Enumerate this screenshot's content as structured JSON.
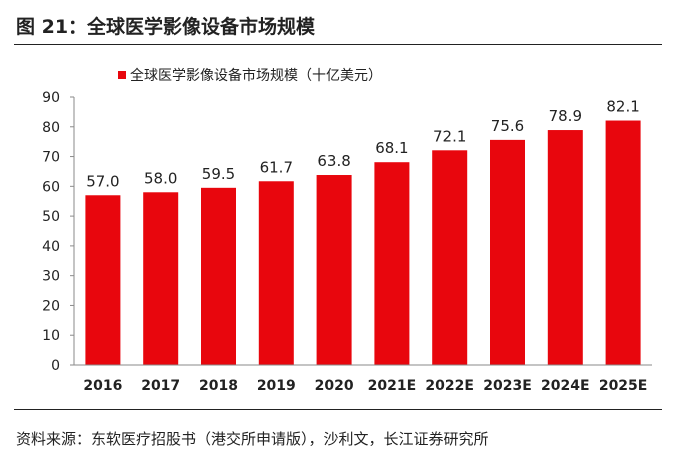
{
  "figure": {
    "title": "图 21：全球医学影像设备市场规模",
    "source": "资料来源：东软医疗招股书（港交所申请版），沙利文，长江证券研究所"
  },
  "colors": {
    "bar": "#e8060d",
    "axis": "#8a8a8a",
    "text": "#222222"
  },
  "chart_data": {
    "type": "bar",
    "categories": [
      "2016",
      "2017",
      "2018",
      "2019",
      "2020",
      "2021E",
      "2022E",
      "2023E",
      "2024E",
      "2025E"
    ],
    "series": [
      {
        "name": "全球医学影像设备市场规模（十亿美元）",
        "values": [
          57.0,
          58.0,
          59.5,
          61.7,
          63.8,
          68.1,
          72.1,
          75.6,
          78.9,
          82.1
        ]
      }
    ],
    "data_labels": [
      "57.0",
      "58.0",
      "59.5",
      "61.7",
      "63.8",
      "68.1",
      "72.1",
      "75.6",
      "78.9",
      "82.1"
    ],
    "ylim": [
      0,
      90
    ],
    "yticks": [
      0,
      10,
      20,
      30,
      40,
      50,
      60,
      70,
      80,
      90
    ],
    "grid": false,
    "legend_position": "top-left"
  }
}
